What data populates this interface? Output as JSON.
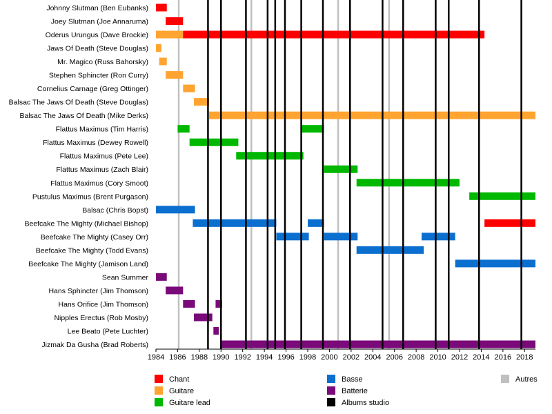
{
  "chart_data": {
    "type": "timeline",
    "xlim": [
      1984,
      2019
    ],
    "x_ticks": [
      "1984",
      "1986",
      "1988",
      "1990",
      "1992",
      "1994",
      "1996",
      "1998",
      "2000",
      "2002",
      "2004",
      "2006",
      "2008",
      "2010",
      "2012",
      "2014",
      "2016",
      "2018"
    ],
    "members": [
      "Johnny Slutman (Ben Eubanks)",
      "Joey Slutman (Joe Annaruma)",
      "Oderus Urungus (Dave Brockie)",
      "Jaws Of Death (Steve Douglas)",
      "Mr. Magico (Russ Bahorsky)",
      "Stephen Sphincter (Ron Curry)",
      "Cornelius Carnage (Greg Ottinger)",
      "Balsac The Jaws Of Death (Steve Douglas)",
      "Balsac The Jaws Of Death (Mike Derks)",
      "Flattus Maximus (Tim Harris)",
      "Flattus Maximus (Dewey Rowell)",
      "Flattus Maximus (Pete Lee)",
      "Flattus Maximus (Zach Blair)",
      "Flattus Maximus (Cory Smoot)",
      "Pustulus Maximus (Brent Purgason)",
      "Balsac (Chris Bopst)",
      "Beefcake The Mighty (Michael Bishop)",
      "Beefcake The Mighty (Casey Orr)",
      "Beefcake The Mighty (Todd Evans)",
      "Beefcake The Mighty (Jamison Land)",
      "Sean Summer",
      "Hans Sphincter (Jim Thomson)",
      "Hans Orifice (Jim Thomson)",
      "Nipples Erectus (Rob Mosby)",
      "Lee Beato (Pete Luchter)",
      "Jizmak Da Gusha (Brad Roberts)"
    ],
    "colors": {
      "chant": "#ff0000",
      "guitare": "#ffa431",
      "guitare_lead": "#00b800",
      "basse": "#0a6fcf",
      "batterie": "#7a0a7a",
      "albums": "#000000",
      "autres": "#c0c0c0"
    },
    "bars": [
      {
        "row": 0,
        "role": "chant",
        "start": 1984.0,
        "end": 1985.0
      },
      {
        "row": 1,
        "role": "chant",
        "start": 1984.9,
        "end": 1986.5
      },
      {
        "row": 2,
        "role": "guitare",
        "start": 1984.0,
        "end": 1986.5
      },
      {
        "row": 2,
        "role": "chant",
        "start": 1986.5,
        "end": 2014.3
      },
      {
        "row": 3,
        "role": "guitare",
        "start": 1984.0,
        "end": 1984.5
      },
      {
        "row": 4,
        "role": "guitare",
        "start": 1984.3,
        "end": 1985.0
      },
      {
        "row": 5,
        "role": "guitare",
        "start": 1984.9,
        "end": 1986.5
      },
      {
        "row": 6,
        "role": "guitare",
        "start": 1986.5,
        "end": 1987.6
      },
      {
        "row": 7,
        "role": "guitare",
        "start": 1987.5,
        "end": 1988.9
      },
      {
        "row": 8,
        "role": "guitare",
        "start": 1988.9,
        "end": 2019.0
      },
      {
        "row": 9,
        "role": "guitare_lead",
        "start": 1986.0,
        "end": 1987.1
      },
      {
        "row": 9,
        "role": "guitare_lead",
        "start": 1997.4,
        "end": 1999.5
      },
      {
        "row": 10,
        "role": "guitare_lead",
        "start": 1987.1,
        "end": 1991.6
      },
      {
        "row": 11,
        "role": "guitare_lead",
        "start": 1991.4,
        "end": 1997.6
      },
      {
        "row": 12,
        "role": "guitare_lead",
        "start": 1999.5,
        "end": 2002.6
      },
      {
        "row": 13,
        "role": "guitare_lead",
        "start": 2002.5,
        "end": 2012.0
      },
      {
        "row": 14,
        "role": "guitare_lead",
        "start": 2012.9,
        "end": 2019.0
      },
      {
        "row": 15,
        "role": "basse",
        "start": 1984.0,
        "end": 1987.6
      },
      {
        "row": 16,
        "role": "basse",
        "start": 1987.4,
        "end": 1995.1
      },
      {
        "row": 16,
        "role": "basse",
        "start": 1998.0,
        "end": 1999.5
      },
      {
        "row": 16,
        "role": "chant",
        "start": 2014.3,
        "end": 2019.0
      },
      {
        "row": 17,
        "role": "basse",
        "start": 1995.1,
        "end": 1998.1
      },
      {
        "row": 17,
        "role": "basse",
        "start": 1999.5,
        "end": 2002.6
      },
      {
        "row": 17,
        "role": "basse",
        "start": 2008.5,
        "end": 2011.6
      },
      {
        "row": 18,
        "role": "basse",
        "start": 2002.5,
        "end": 2008.7
      },
      {
        "row": 19,
        "role": "basse",
        "start": 2011.6,
        "end": 2019.0
      },
      {
        "row": 20,
        "role": "batterie",
        "start": 1984.0,
        "end": 1985.0
      },
      {
        "row": 21,
        "role": "batterie",
        "start": 1984.9,
        "end": 1986.5
      },
      {
        "row": 22,
        "role": "batterie",
        "start": 1986.5,
        "end": 1987.6
      },
      {
        "row": 22,
        "role": "batterie",
        "start": 1989.5,
        "end": 1990.1
      },
      {
        "row": 23,
        "role": "batterie",
        "start": 1987.5,
        "end": 1989.2
      },
      {
        "row": 24,
        "role": "batterie",
        "start": 1989.3,
        "end": 1989.8
      },
      {
        "row": 25,
        "role": "batterie",
        "start": 1990.0,
        "end": 2019.0
      }
    ],
    "album_lines": [
      1988.8,
      1990.0,
      1992.3,
      1994.3,
      1995.0,
      1995.9,
      1997.4,
      1999.4,
      2001.9,
      2004.9,
      2006.8,
      2009.8,
      2011.0,
      2013.8,
      2017.7
    ],
    "other_lines": [
      1986.1,
      1992.8,
      2000.8,
      2005.5
    ],
    "legend": [
      {
        "key": "chant",
        "label": "Chant"
      },
      {
        "key": "guitare",
        "label": "Guitare"
      },
      {
        "key": "guitare_lead",
        "label": "Guitare lead"
      },
      {
        "key": "basse",
        "label": "Basse"
      },
      {
        "key": "batterie",
        "label": "Batterie"
      },
      {
        "key": "albums",
        "label": "Albums studio"
      },
      {
        "key": "autres",
        "label": "Autres"
      }
    ],
    "legend_placement": "bottom"
  }
}
